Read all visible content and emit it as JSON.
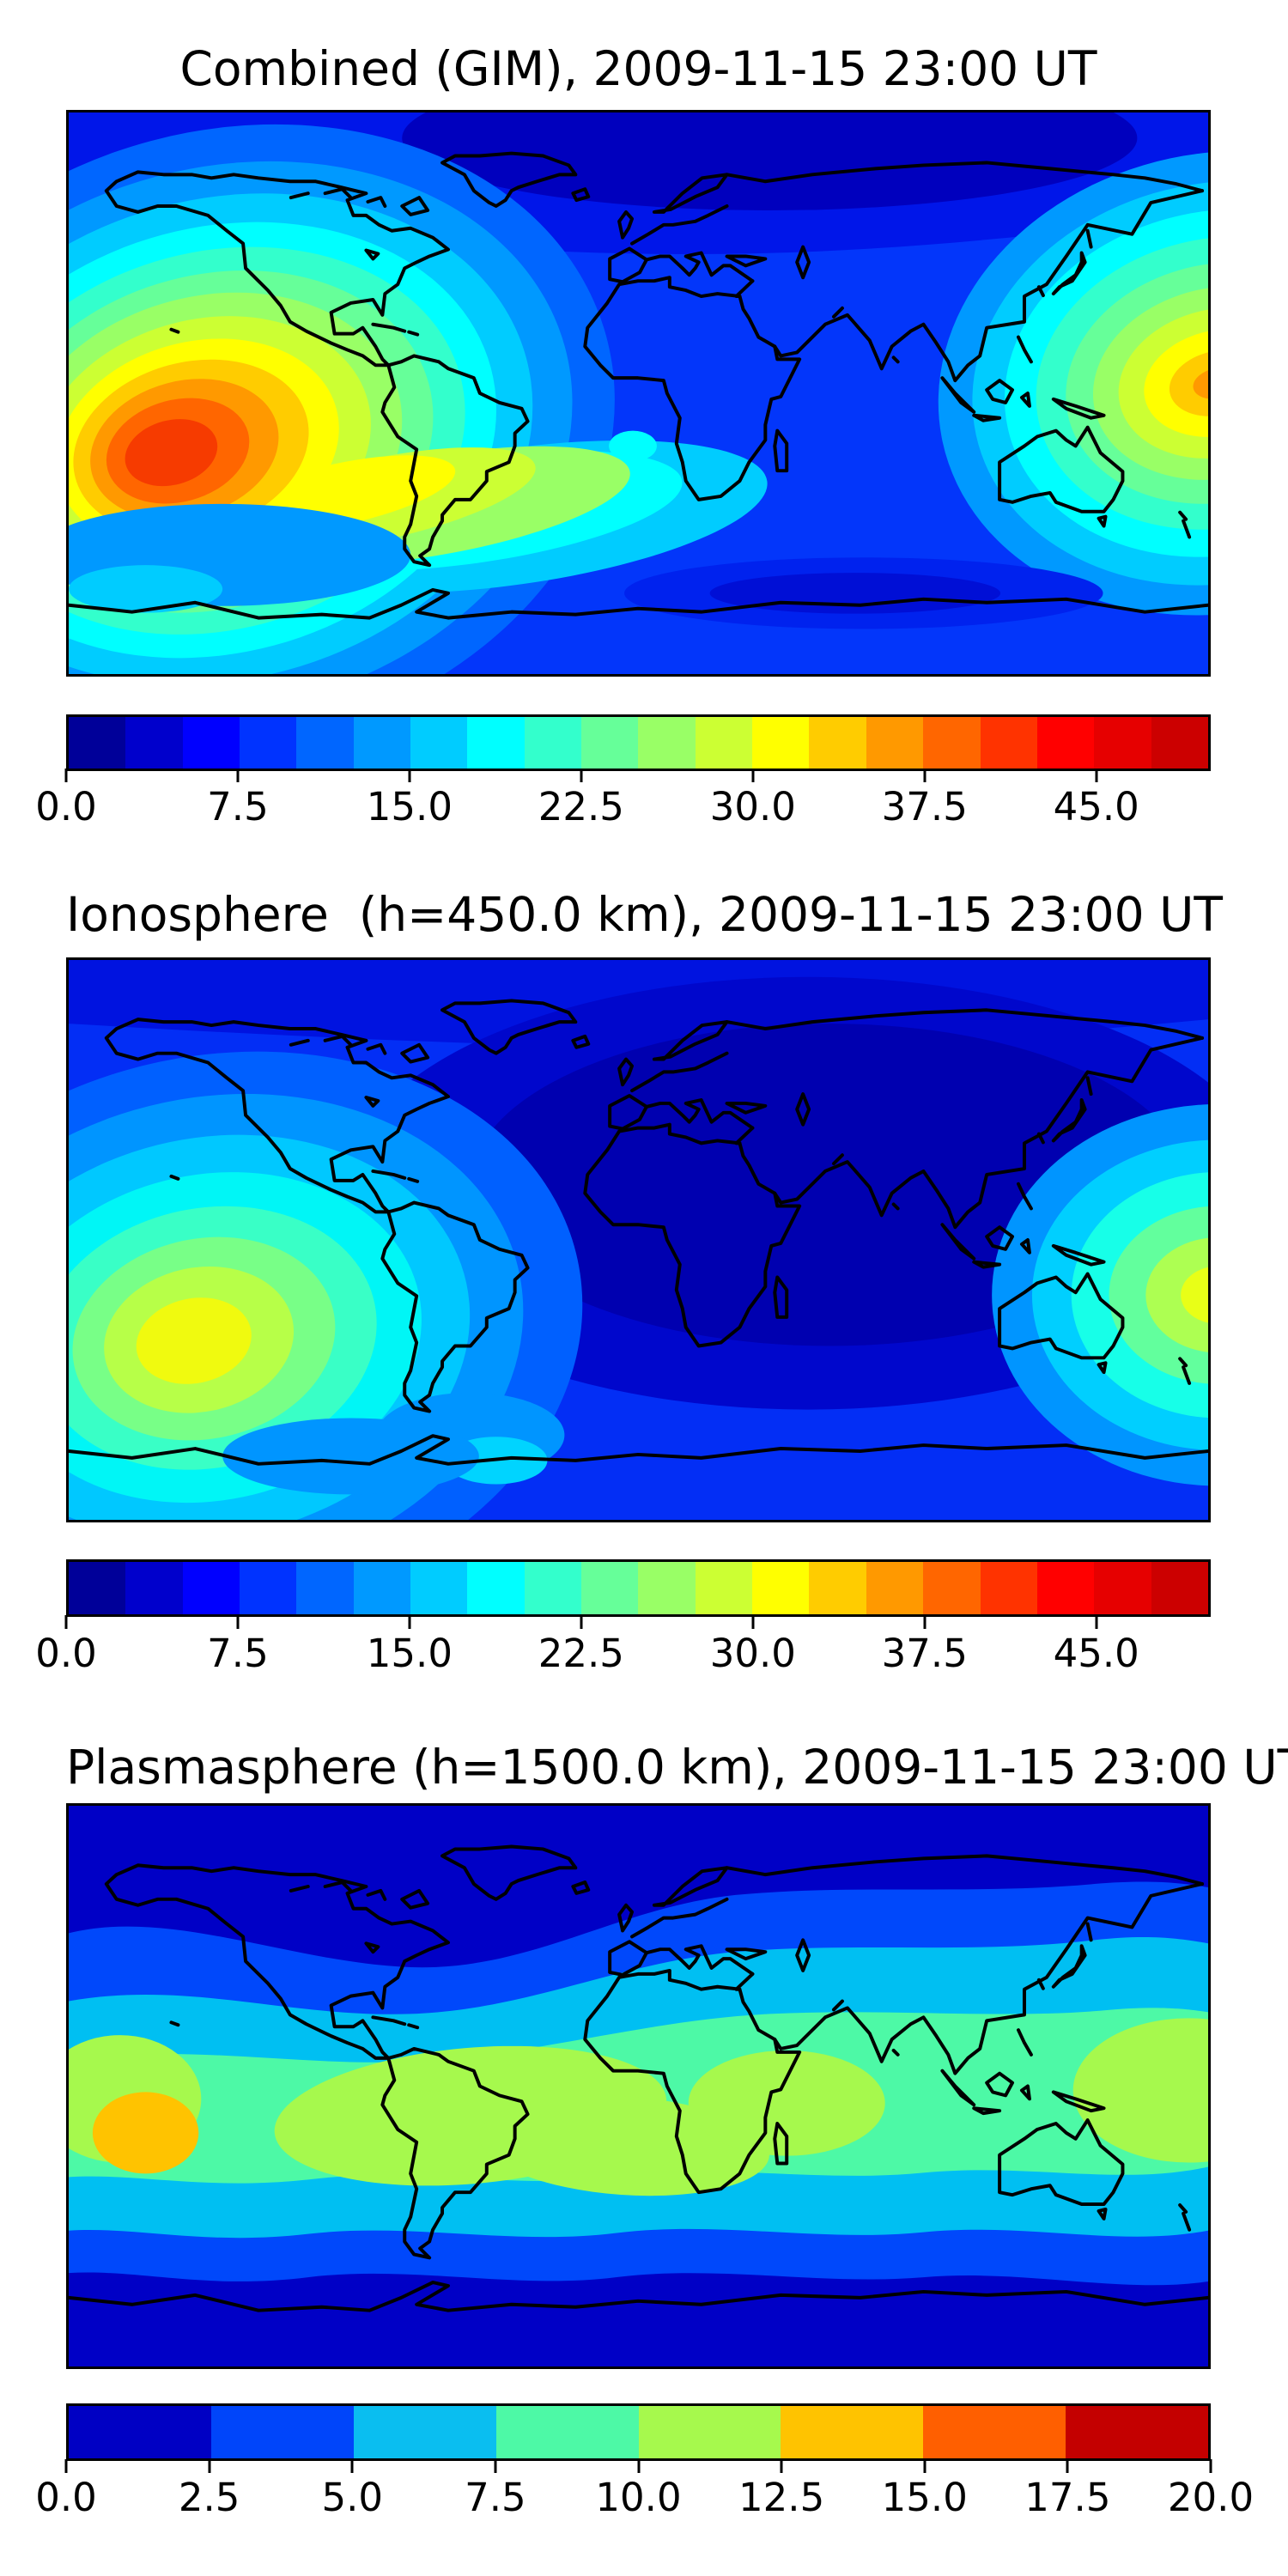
{
  "panels": [
    {
      "title": "Combined (GIM), 2009-11-15 23:00 UT",
      "colorbar": {
        "min": 0,
        "max": 50,
        "tick_values": [
          0,
          7.5,
          15,
          22.5,
          30,
          37.5,
          45
        ],
        "tick_labels": [
          "0.0",
          "7.5",
          "15.0",
          "22.5",
          "30.0",
          "37.5",
          "45.0"
        ],
        "segment_colors": [
          "#000099",
          "#0000CC",
          "#0000FF",
          "#0033FF",
          "#0066FF",
          "#0099FF",
          "#00CCFF",
          "#00FFFF",
          "#33FFCC",
          "#66FF99",
          "#99FF66",
          "#CCFF33",
          "#FFFF00",
          "#FFCC00",
          "#FF9900",
          "#FF6600",
          "#FF3300",
          "#FF0000",
          "#E60000",
          "#CC0000"
        ]
      }
    },
    {
      "title": "Ionosphere  (h=450.0 km), 2009-11-15 23:00 UT",
      "colorbar": {
        "min": 0,
        "max": 50,
        "tick_values": [
          0,
          7.5,
          15,
          22.5,
          30,
          37.5,
          45
        ],
        "tick_labels": [
          "0.0",
          "7.5",
          "15.0",
          "22.5",
          "30.0",
          "37.5",
          "45.0"
        ],
        "segment_colors": [
          "#000099",
          "#0000CC",
          "#0000FF",
          "#0033FF",
          "#0066FF",
          "#0099FF",
          "#00CCFF",
          "#00FFFF",
          "#33FFCC",
          "#66FF99",
          "#99FF66",
          "#CCFF33",
          "#FFFF00",
          "#FFCC00",
          "#FF9900",
          "#FF6600",
          "#FF3300",
          "#FF0000",
          "#E60000",
          "#CC0000"
        ]
      }
    },
    {
      "title": "Plasmasphere (h=1500.0 km), 2009-11-15 23:00 UT",
      "colorbar": {
        "min": 0,
        "max": 20,
        "tick_values": [
          0,
          2.5,
          5,
          7.5,
          10,
          12.5,
          15,
          17.5,
          20
        ],
        "tick_labels": [
          "0.0",
          "2.5",
          "5.0",
          "7.5",
          "10.0",
          "12.5",
          "15.0",
          "17.5",
          "20.0"
        ],
        "segment_colors": [
          "#0000C4",
          "#0045FA",
          "#0ABEF0",
          "#4DF9A6",
          "#A6F94D",
          "#FFC300",
          "#FF5F00",
          "#C40000"
        ]
      }
    }
  ],
  "chart_data": [
    {
      "type": "heatmap",
      "subtype": "filled-contour-world-map",
      "title": "Combined (GIM), 2009-11-15 23:00 UT",
      "projection": "equirectangular",
      "lon_range": [
        -180,
        180
      ],
      "lat_range": [
        -90,
        90
      ],
      "value_range": [
        0,
        50
      ],
      "contour_interval": 2.5,
      "colormap": "jet",
      "colorbar_ticks": [
        0,
        7.5,
        15,
        22.5,
        30,
        37.5,
        45
      ],
      "legend_position": "bottom",
      "features": [
        {
          "name": "equatorial-anomaly-peak-east-pacific",
          "lon": -135,
          "lat": -13,
          "peak_value": 42.5
        },
        {
          "name": "secondary-peak-west-pacific",
          "lon": 178,
          "lat": 3,
          "peak_value": 37.5
        },
        {
          "name": "high-latitude-minimum-arctic",
          "lon": 40,
          "lat": 82,
          "value": 2.5
        },
        {
          "name": "south-indian-ocean-low",
          "lon": 75,
          "lat": -65,
          "value": 5
        },
        {
          "name": "mid-latitude-background",
          "value": 7.5
        }
      ]
    },
    {
      "type": "heatmap",
      "subtype": "filled-contour-world-map",
      "title": "Ionosphere  (h=450.0 km), 2009-11-15 23:00 UT",
      "projection": "equirectangular",
      "lon_range": [
        -180,
        180
      ],
      "lat_range": [
        -90,
        90
      ],
      "value_range": [
        0,
        50
      ],
      "contour_interval": 2.5,
      "colormap": "jet",
      "colorbar_ticks": [
        0,
        7.5,
        15,
        22.5,
        30,
        37.5,
        45
      ],
      "legend_position": "bottom",
      "features": [
        {
          "name": "equatorial-anomaly-peak-east-pacific",
          "lon": -138,
          "lat": -30,
          "peak_value": 32.5
        },
        {
          "name": "secondary-peak-west-pacific-edge",
          "lon": 180,
          "lat": -17,
          "peak_value": 27.5
        },
        {
          "name": "nightside-minimum-africa-eurasia",
          "lon": 40,
          "lat": 15,
          "value": 2.5
        },
        {
          "name": "background-ocean",
          "value": 7.5
        }
      ]
    },
    {
      "type": "heatmap",
      "subtype": "filled-contour-world-map",
      "title": "Plasmasphere (h=1500.0 km), 2009-11-15 23:00 UT",
      "projection": "equirectangular",
      "lon_range": [
        -180,
        180
      ],
      "lat_range": [
        -90,
        90
      ],
      "value_range": [
        0,
        20
      ],
      "contour_interval": 2.5,
      "colormap": "jet",
      "colorbar_ticks": [
        0,
        2.5,
        5,
        7.5,
        10,
        12.5,
        15,
        17.5,
        20
      ],
      "legend_position": "bottom",
      "features": [
        {
          "name": "equatorial-band",
          "lat_range": [
            -25,
            25
          ],
          "value_range": [
            7.5,
            10
          ]
        },
        {
          "name": "enhanced-band-blobs",
          "lons": [
            -165,
            -50,
            0,
            50,
            175
          ],
          "lat": -5,
          "value_range": [
            10,
            12.5
          ]
        },
        {
          "name": "peak-east-pacific",
          "lon": -155,
          "lat": -17,
          "peak_value": 14
        },
        {
          "name": "polar-minimum-north",
          "lat_range": [
            55,
            90
          ],
          "value": 2.5
        },
        {
          "name": "polar-minimum-south",
          "lat_range": [
            -90,
            -55
          ],
          "value": 2.5
        }
      ]
    }
  ]
}
